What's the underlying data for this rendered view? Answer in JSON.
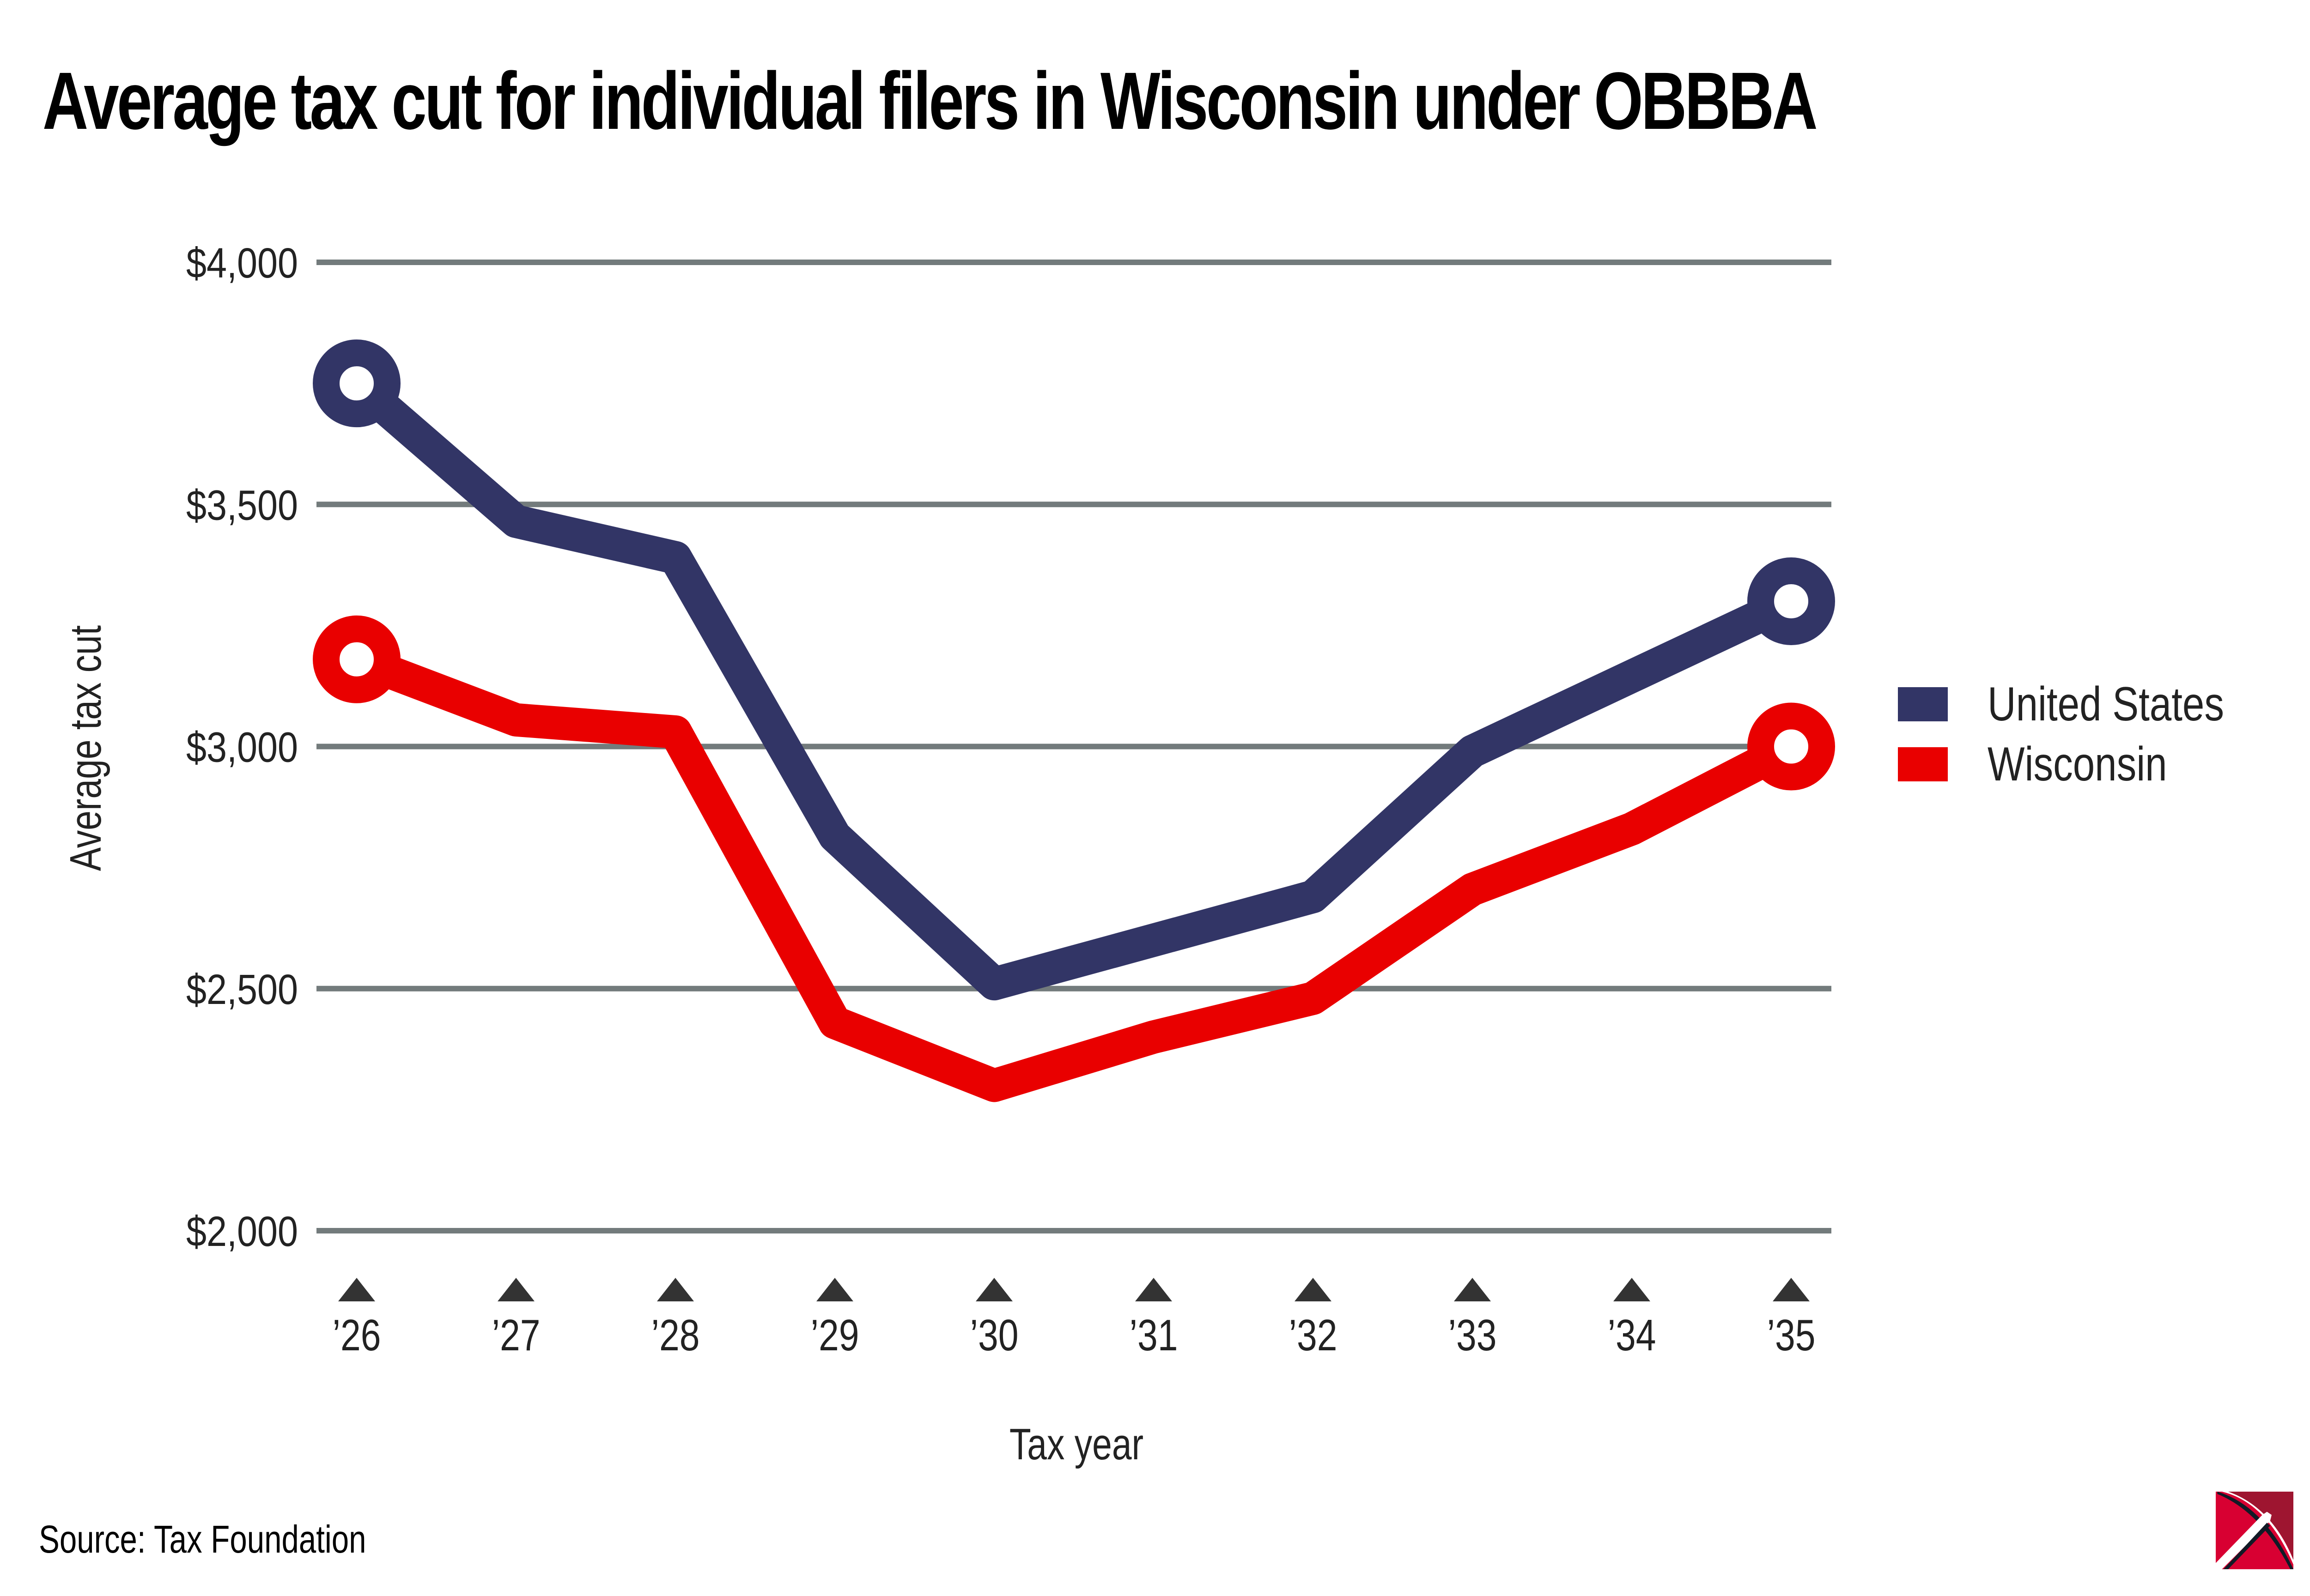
{
  "title": "Average tax cut for individual filers in Wisconsin under OBBBA",
  "source": "Source: Tax Foundation",
  "logo": "pickaxe-logo",
  "colors": {
    "united_states": "#323566",
    "wisconsin": "#E90000",
    "gridline": "#737B7C",
    "tick": "#333333",
    "logo_red": "#D80032",
    "logo_dark_red": "#9E1530"
  },
  "chart_data": {
    "type": "line",
    "title": "Average tax cut for individual filers in Wisconsin under OBBBA",
    "xlabel": "Tax year",
    "ylabel": "Average tax cut",
    "categories": [
      "’26",
      "’27",
      "’28",
      "’29",
      "’30",
      "’31",
      "’32",
      "’33",
      "’34",
      "’35"
    ],
    "yticks": [
      2000,
      2500,
      3000,
      3500,
      4000
    ],
    "ytick_labels": [
      "$2,000",
      "$2,500",
      "$3,000",
      "$3,500",
      "$4,000"
    ],
    "ylim": [
      2000,
      4000
    ],
    "grid": true,
    "legend_position": "right",
    "series": [
      {
        "name": "United States",
        "color": "#323566",
        "values": [
          3750,
          3465,
          3390,
          2815,
          2510,
          2600,
          2690,
          2990,
          3145,
          3300
        ]
      },
      {
        "name": "Wisconsin",
        "color": "#E90000",
        "values": [
          3180,
          3055,
          3030,
          2430,
          2300,
          2400,
          2480,
          2705,
          2830,
          3000
        ]
      }
    ],
    "endpoint_markers": "hollow-circle"
  }
}
